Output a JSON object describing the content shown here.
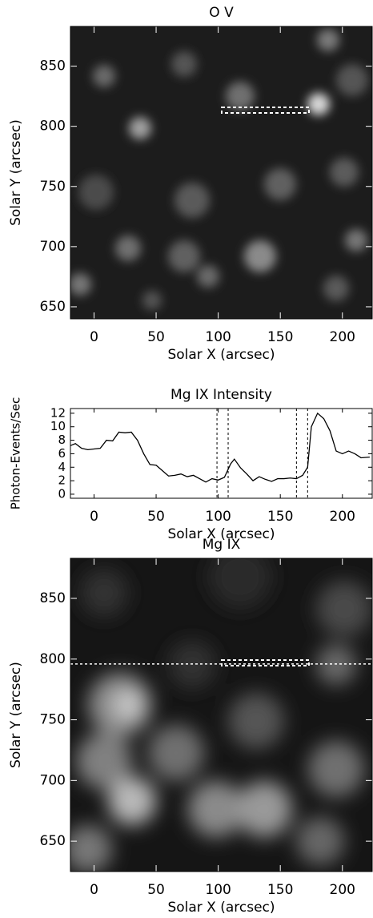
{
  "chart_data": [
    {
      "type": "image",
      "title": "O V",
      "xlabel": "Solar X (arcsec)",
      "ylabel": "Solar Y (arcsec)",
      "xlim": [
        -19,
        224
      ],
      "xticks": [
        0,
        50,
        100,
        150,
        200
      ],
      "ylim": [
        640,
        883
      ],
      "yticks": [
        650,
        700,
        750,
        800,
        850
      ]
    },
    {
      "type": "line",
      "title": "Mg IX Intensity",
      "xlabel": "Solar X (arcsec)",
      "ylabel": "Photon-Events/Sec",
      "x": [
        -19,
        -15,
        -10,
        -5,
        0,
        5,
        10,
        15,
        20,
        25,
        30,
        35,
        40,
        45,
        50,
        55,
        60,
        65,
        70,
        75,
        80,
        85,
        90,
        95,
        100,
        105,
        110,
        113,
        118,
        123,
        128,
        133,
        138,
        143,
        148,
        153,
        158,
        163,
        168,
        172,
        175,
        180,
        185,
        190,
        195,
        200,
        205,
        210,
        215,
        222
      ],
      "values": [
        7.2,
        7.5,
        6.8,
        6.6,
        6.7,
        6.8,
        8.0,
        7.9,
        9.2,
        9.1,
        9.2,
        8.0,
        6.0,
        4.4,
        4.3,
        3.5,
        2.7,
        2.8,
        3.0,
        2.6,
        2.8,
        2.3,
        1.8,
        2.3,
        2.1,
        2.5,
        4.5,
        5.2,
        3.9,
        3.0,
        2.0,
        2.6,
        2.2,
        1.9,
        2.3,
        2.3,
        2.4,
        2.3,
        2.8,
        4.0,
        10.0,
        12.0,
        11.2,
        9.4,
        6.4,
        6.0,
        6.4,
        6.0,
        5.4,
        5.5
      ],
      "color": "#000000",
      "vlines": [
        99,
        108,
        163,
        172
      ],
      "xlim": [
        -19,
        224
      ],
      "xticks": [
        0,
        50,
        100,
        150,
        200
      ],
      "ylim": [
        -0.6,
        12.7
      ],
      "yticks": [
        0,
        2,
        4,
        6,
        8,
        10,
        12
      ]
    },
    {
      "type": "image",
      "title": "Mg IX",
      "xlabel": "Solar X (arcsec)",
      "ylabel": "Solar Y (arcsec)",
      "hline": 796,
      "xlim": [
        -19,
        224
      ],
      "xticks": [
        0,
        50,
        100,
        150,
        200
      ],
      "ylim": [
        625,
        883
      ],
      "yticks": [
        650,
        700,
        750,
        800,
        850
      ]
    }
  ]
}
